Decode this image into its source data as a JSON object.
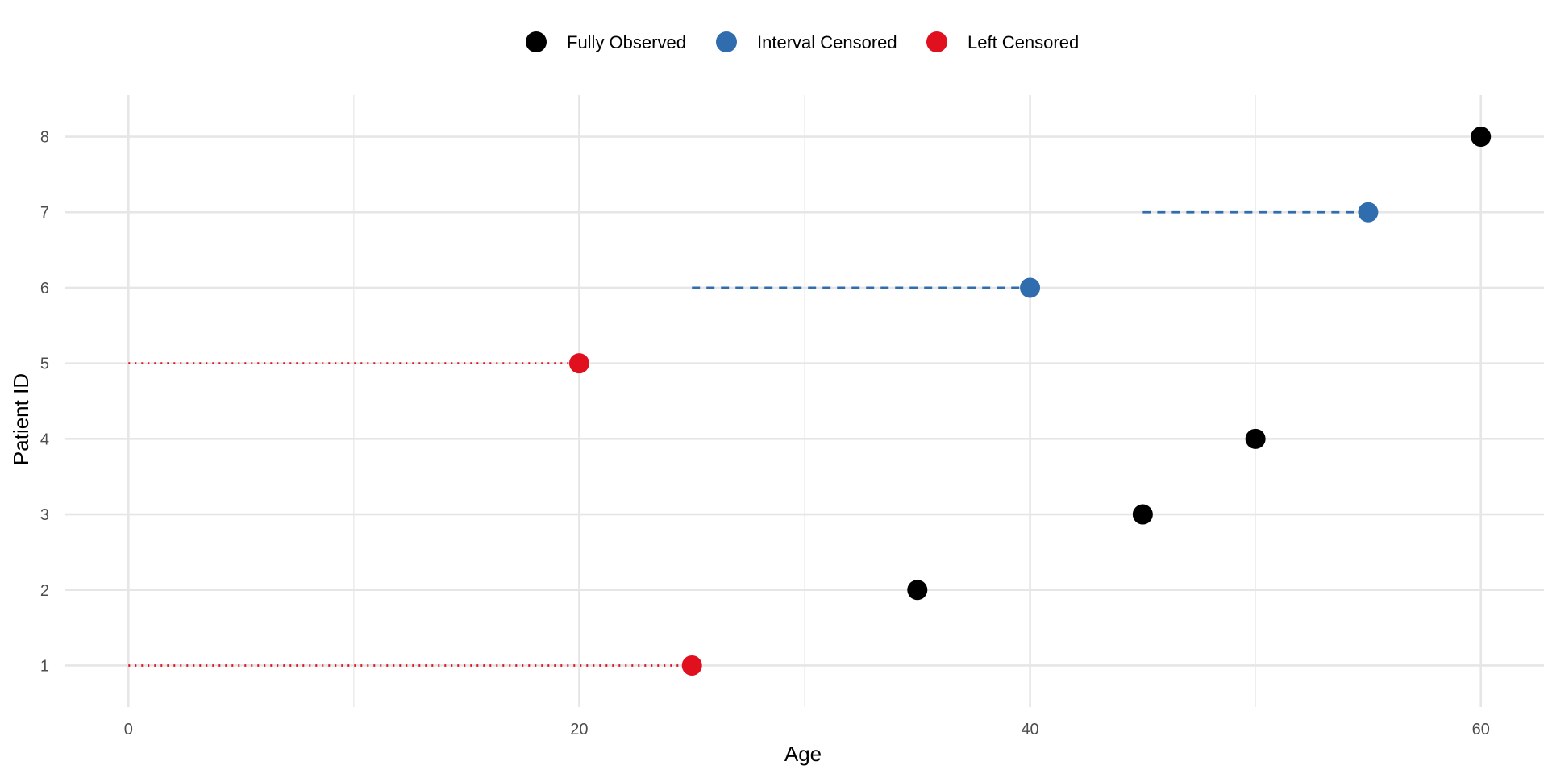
{
  "chart_data": {
    "type": "scatter",
    "xlabel": "Age",
    "ylabel": "Patient ID",
    "xlim": [
      -2.8,
      62.8
    ],
    "ylim": [
      0.45,
      8.55
    ],
    "x_ticks": [
      0,
      20,
      40,
      60
    ],
    "x_minor_ticks": [
      10,
      30,
      50
    ],
    "y_ticks": [
      1,
      2,
      3,
      4,
      5,
      6,
      7,
      8
    ],
    "grid": true,
    "legend_position": "top",
    "legend": [
      {
        "label": "Fully Observed",
        "color": "#000000"
      },
      {
        "label": "Interval Censored",
        "color": "#2f6daf"
      },
      {
        "label": "Left Censored",
        "color": "#e0101e"
      }
    ],
    "series": [
      {
        "name": "Fully Observed",
        "color": "#000000",
        "points": [
          {
            "patient": 2,
            "age": 35
          },
          {
            "patient": 3,
            "age": 45
          },
          {
            "patient": 4,
            "age": 50
          },
          {
            "patient": 8,
            "age": 60
          }
        ]
      },
      {
        "name": "Interval Censored",
        "color": "#2f6daf",
        "line_style": "dashed",
        "points": [
          {
            "patient": 6,
            "age": 40,
            "interval_start": 25
          },
          {
            "patient": 7,
            "age": 55,
            "interval_start": 45
          }
        ]
      },
      {
        "name": "Left Censored",
        "color": "#e0101e",
        "line_style": "dotted",
        "points": [
          {
            "patient": 1,
            "age": 25,
            "interval_start": 0
          },
          {
            "patient": 5,
            "age": 20,
            "interval_start": 0
          }
        ]
      }
    ]
  }
}
